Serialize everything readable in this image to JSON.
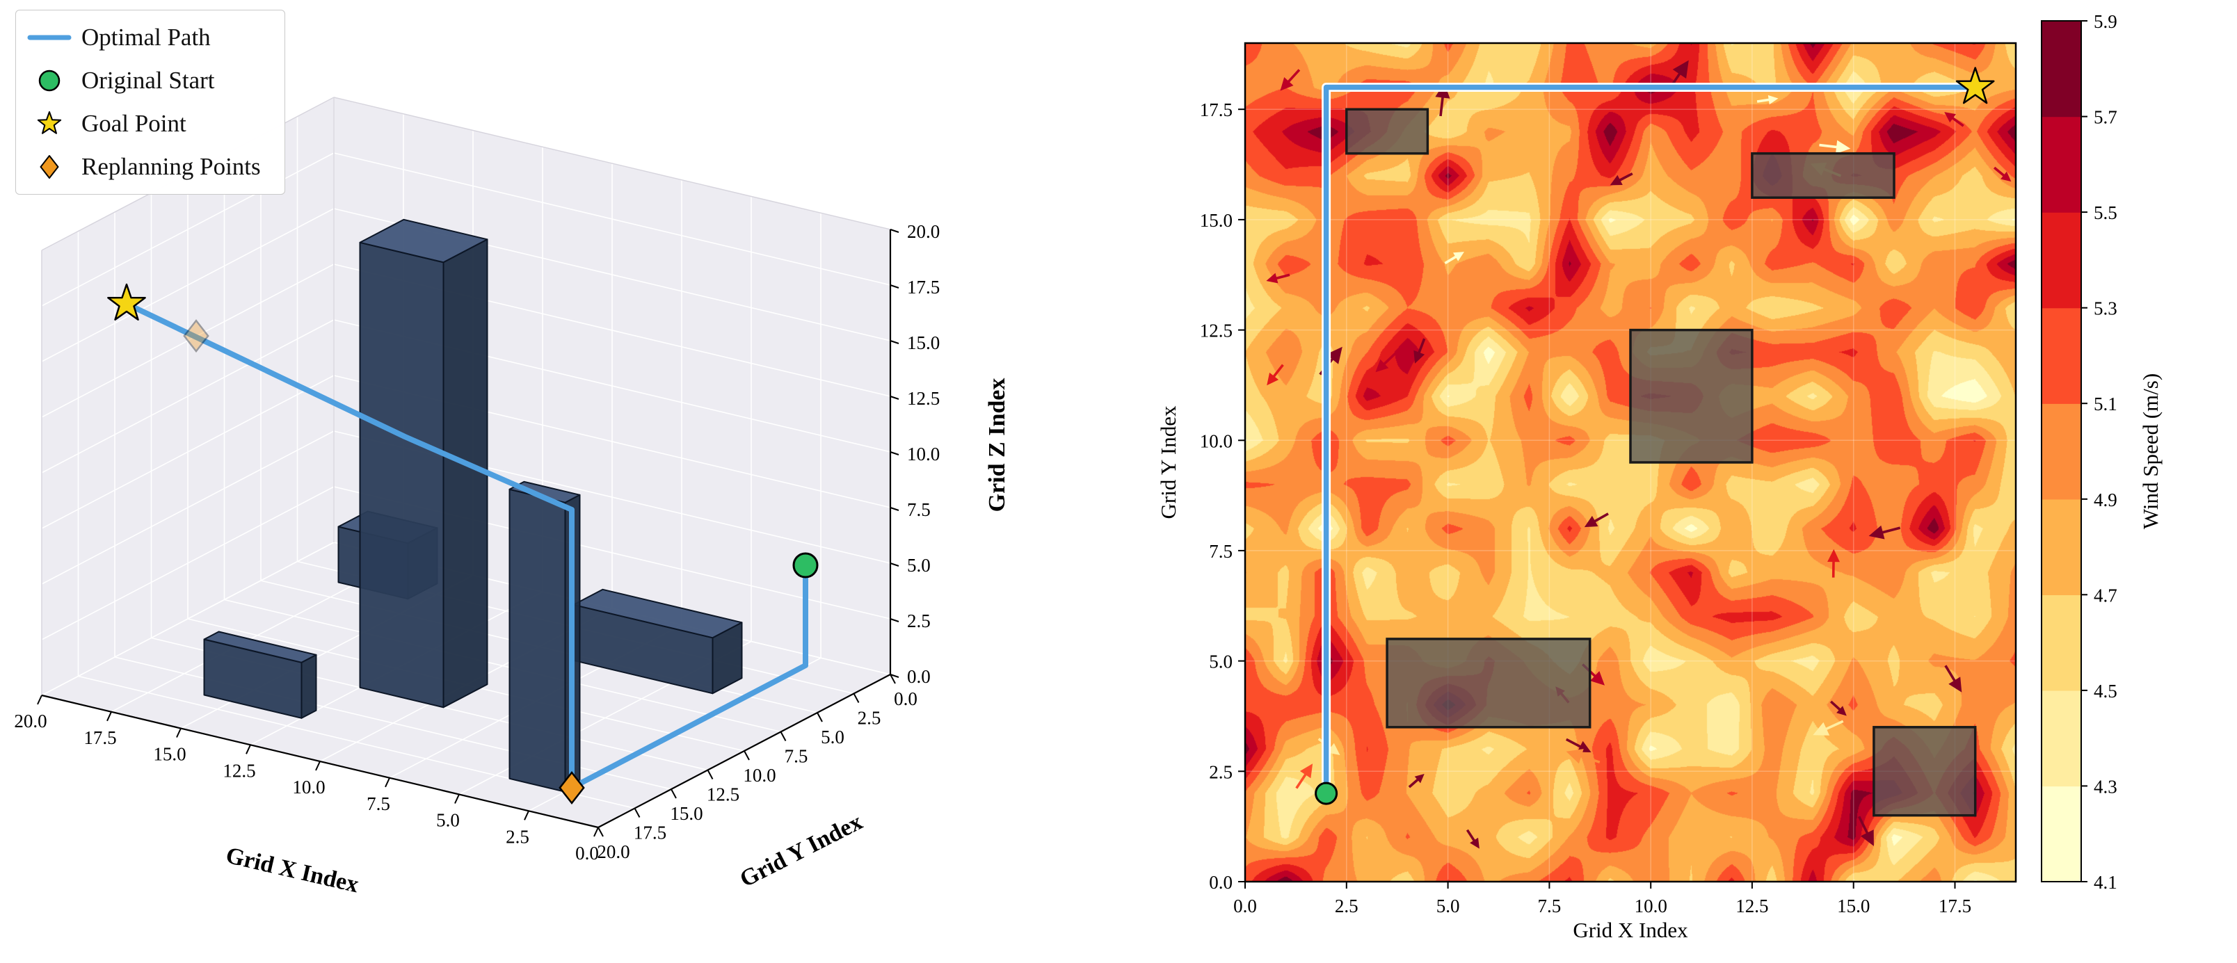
{
  "page": {
    "background": "#ffffff"
  },
  "chart_data": [
    {
      "type": "path3d",
      "panel": "left",
      "xlabel": "Grid X Index",
      "ylabel": "Grid Y Index",
      "zlabel": "Grid Z Index",
      "xlim": [
        0,
        20
      ],
      "ylim": [
        0,
        20
      ],
      "zlim": [
        0,
        20
      ],
      "tick_values": [
        0,
        2.5,
        5,
        7.5,
        10,
        12.5,
        15,
        17.5,
        20
      ],
      "xticks": [
        "0.0",
        "2.5",
        "5.0",
        "7.5",
        "10.0",
        "12.5",
        "15.0",
        "17.5",
        "20.0"
      ],
      "yticks": [
        "0.0",
        "2.5",
        "5.0",
        "7.5",
        "10.0",
        "12.5",
        "15.0",
        "17.5",
        "20.0"
      ],
      "zticks": [
        "0.0",
        "2.5",
        "5.0",
        "7.5",
        "10.0",
        "12.5",
        "15.0",
        "17.5",
        "20.0"
      ],
      "legend": {
        "position": "upper left",
        "items": [
          {
            "label": "Optimal Path",
            "marker": "line",
            "color": "#4f9fdf"
          },
          {
            "label": "Original Start",
            "marker": "circle",
            "color": "#2dbd63"
          },
          {
            "label": "Goal Point",
            "marker": "star",
            "color": "#f5d513"
          },
          {
            "label": "Replanning Points",
            "marker": "diamond",
            "color": "#f0981e"
          }
        ]
      },
      "path": [
        [
          2,
          2,
          5
        ],
        [
          2,
          2,
          0.5
        ],
        [
          2,
          18,
          0.5
        ],
        [
          2,
          18,
          13
        ],
        [
          8,
          18,
          14.5
        ],
        [
          18,
          18,
          17.5
        ]
      ],
      "start_point": [
        2,
        2,
        5
      ],
      "goal_point": [
        18,
        18,
        17.5
      ],
      "replanning_points": [
        {
          "point": [
            2,
            18,
            0.5
          ],
          "opacity": 1.0
        },
        {
          "point": [
            15.5,
            18,
            16.8
          ],
          "opacity": 0.35
        }
      ],
      "obstacles": [
        {
          "x": [
            9.5,
            12.5
          ],
          "y": [
            9.5,
            12.5
          ],
          "height": 20
        },
        {
          "x": [
            2.5,
            4.5
          ],
          "y": [
            16.5,
            17.5
          ],
          "height": 13
        },
        {
          "x": [
            12.5,
            16
          ],
          "y": [
            15.5,
            16.5
          ],
          "height": 2.5
        },
        {
          "x": [
            3.5,
            8.5
          ],
          "y": [
            3.5,
            5.5
          ],
          "height": 2.5
        },
        {
          "x": [
            15.5,
            18
          ],
          "y": [
            1.5,
            3.5
          ],
          "height": 2.5
        }
      ],
      "colors": {
        "path": "#4f9fdf",
        "start": "#2dbd63",
        "goal": "#f5d513",
        "replanning": "#f0981e",
        "obstacle_top": "#41567a",
        "obstacle_side": "#2b3d59",
        "obstacle_side_dark": "#1f2e45",
        "obstacle_edge": "#0c1626",
        "pane": "#edecf2",
        "grid": "#ffffff"
      }
    },
    {
      "type": "contour",
      "panel": "right",
      "xlabel": "Grid X Index",
      "ylabel": "Grid Y Index",
      "xlim": [
        0,
        19
      ],
      "ylim": [
        0,
        19
      ],
      "tick_values": [
        0,
        2.5,
        5,
        7.5,
        10,
        12.5,
        15,
        17.5
      ],
      "xticks": [
        "0.0",
        "2.5",
        "5.0",
        "7.5",
        "10.0",
        "12.5",
        "15.0",
        "17.5"
      ],
      "yticks": [
        "0.0",
        "2.5",
        "5.0",
        "7.5",
        "10.0",
        "12.5",
        "15.0",
        "17.5"
      ],
      "colorbar": {
        "label": "Wind Speed (m/s)",
        "levels": [
          4.1,
          4.3,
          4.5,
          4.7,
          4.9,
          5.1,
          5.3,
          5.5,
          5.7,
          5.9
        ],
        "ticks": [
          "4.1",
          "4.3",
          "4.5",
          "4.7",
          "4.9",
          "5.1",
          "5.3",
          "5.5",
          "5.7",
          "5.9"
        ],
        "colors": [
          "#ffffcc",
          "#ffeda0",
          "#fed976",
          "#feb24c",
          "#fd8d3c",
          "#fc4e2a",
          "#e31a1c",
          "#bd0026",
          "#800026"
        ]
      },
      "wind_field": {
        "units": "m/s",
        "min": 4.1,
        "max": 5.9,
        "mean_approx": 4.9
      },
      "quiver_arrows": true,
      "path": [
        [
          2,
          2
        ],
        [
          2,
          18
        ],
        [
          18,
          18
        ]
      ],
      "start_point": [
        2,
        2
      ],
      "goal_point": [
        18,
        18
      ],
      "obstacles": [
        {
          "x": [
            2.5,
            4.5
          ],
          "y": [
            16.5,
            17.5
          ]
        },
        {
          "x": [
            12.5,
            16
          ],
          "y": [
            15.5,
            16.5
          ]
        },
        {
          "x": [
            9.5,
            12.5
          ],
          "y": [
            9.5,
            12.5
          ]
        },
        {
          "x": [
            3.5,
            8.5
          ],
          "y": [
            3.5,
            5.5
          ]
        },
        {
          "x": [
            15.5,
            18
          ],
          "y": [
            1.5,
            3.5
          ]
        }
      ],
      "colors": {
        "path": "#4f9fdf",
        "start": "#2dbd63",
        "goal": "#f5d513",
        "obstacle_fill": "#595959",
        "obstacle_edge": "#1a1a1a"
      }
    }
  ]
}
